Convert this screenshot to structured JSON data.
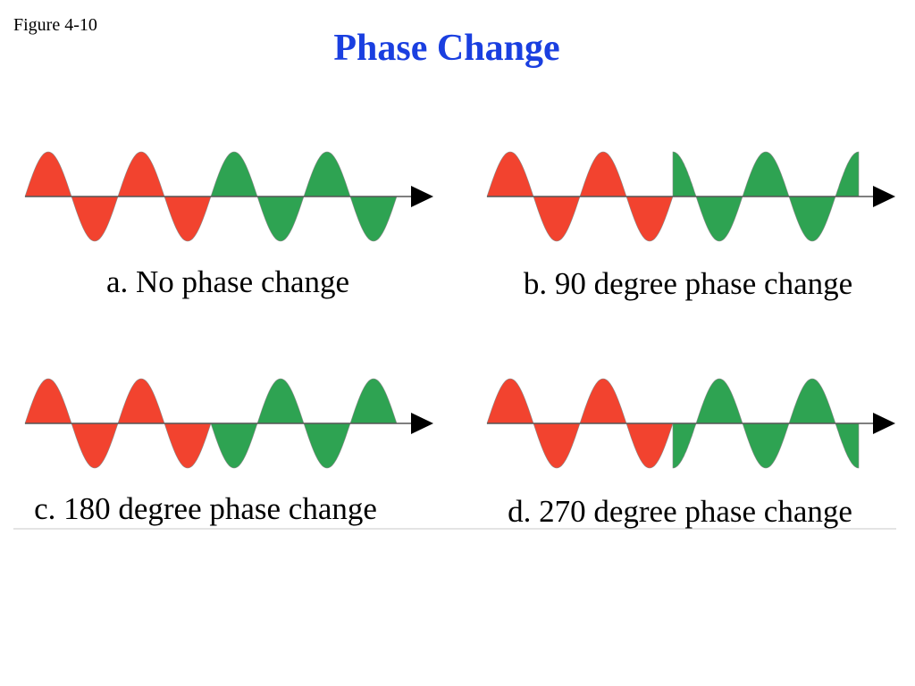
{
  "figure_label": "Figure 4-10",
  "title": "Phase Change",
  "panels": [
    {
      "caption": "a. No phase change"
    },
    {
      "caption": "b. 90 degree phase change"
    },
    {
      "caption": "c. 180 degree phase change"
    },
    {
      "caption": "d. 270 degree phase change"
    }
  ]
}
